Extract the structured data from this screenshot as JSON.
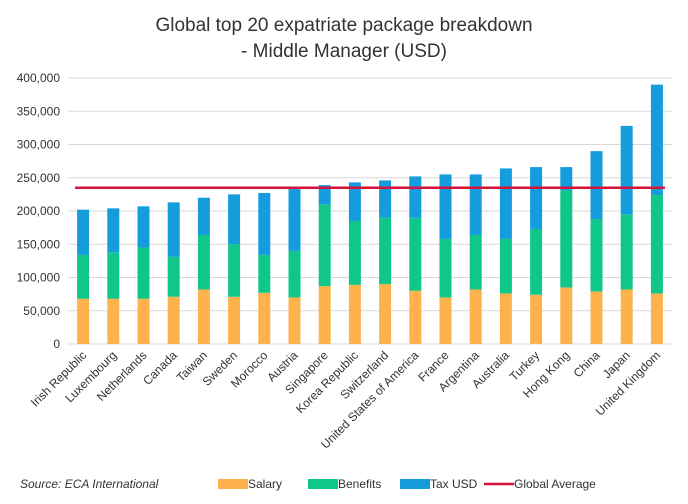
{
  "chart_data": {
    "type": "bar",
    "stacked": true,
    "title_lines": [
      "Global top 20 expatriate package breakdown",
      "- Middle Manager (USD)"
    ],
    "categories": [
      "Irish Republic",
      "Luxembourg",
      "Netherlands",
      "Canada",
      "Taiwan",
      "Sweden",
      "Morocco",
      "Austria",
      "Singapore",
      "Korea Republic",
      "Switzerland",
      "United States of America",
      "France",
      "Argentina",
      "Australia",
      "Turkey",
      "Hong Kong",
      "China",
      "Japan",
      "United Kingdom"
    ],
    "series": [
      {
        "name": "Salary",
        "color": "#FDB24C",
        "values": [
          68000,
          68000,
          68000,
          71000,
          82000,
          71000,
          77000,
          70000,
          87000,
          89000,
          90000,
          80000,
          70000,
          82000,
          76000,
          74000,
          85000,
          79000,
          82000,
          76000
        ]
      },
      {
        "name": "Benefits",
        "color": "#10C68A",
        "values": [
          66000,
          70000,
          77000,
          60000,
          82000,
          79000,
          57000,
          70000,
          123000,
          96000,
          100000,
          110000,
          88000,
          82000,
          82000,
          99000,
          146000,
          109000,
          113000,
          148000
        ]
      },
      {
        "name": "Tax USD",
        "color": "#149CDC",
        "values": [
          68000,
          66000,
          62000,
          82000,
          56000,
          75000,
          93000,
          93000,
          29000,
          58000,
          56000,
          62000,
          97000,
          91000,
          106000,
          93000,
          35000,
          102000,
          133000,
          166000
        ]
      }
    ],
    "reference_line": {
      "name": "Global Average",
      "value": 235000,
      "color": "#D6123A"
    },
    "ylim": [
      0,
      400000
    ],
    "yticks": [
      0,
      50000,
      100000,
      150000,
      200000,
      250000,
      300000,
      350000,
      400000
    ],
    "ytick_labels": [
      "0",
      "50,000",
      "100,000",
      "150,000",
      "200,000",
      "250,000",
      "300,000",
      "350,000",
      "400,000"
    ],
    "grid": true,
    "legend_position": "bottom",
    "source": "Source: ECA International"
  }
}
